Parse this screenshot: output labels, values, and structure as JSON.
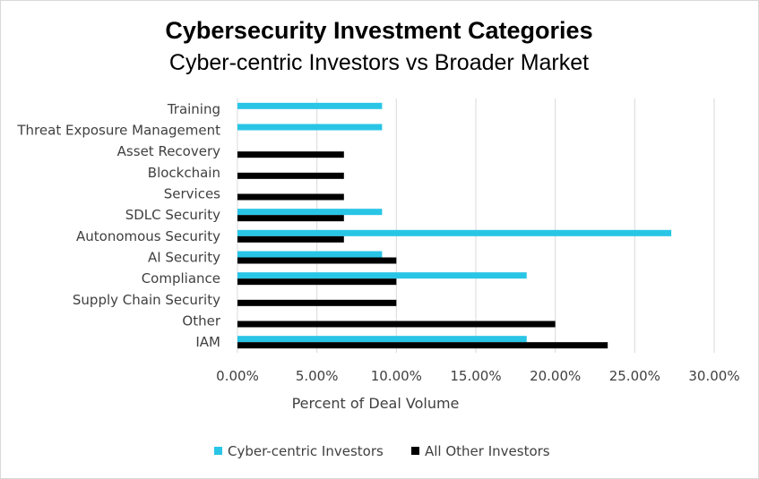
{
  "chart_data": {
    "type": "bar",
    "orientation": "horizontal",
    "title": "Cybersecurity Investment Categories",
    "subtitle": "Cyber-centric Investors vs Broader Market",
    "xlabel": "Percent of Deal Volume",
    "ylabel": "",
    "xlim": [
      0,
      30
    ],
    "x_ticks": [
      0,
      5,
      10,
      15,
      20,
      25,
      30
    ],
    "x_tick_labels": [
      "0.00%",
      "5.00%",
      "10.00%",
      "15.00%",
      "20.00%",
      "25.00%",
      "30.00%"
    ],
    "grid": "vertical",
    "legend_position": "bottom",
    "categories": [
      "IAM",
      "Other",
      "Supply Chain Security",
      "Compliance",
      "AI Security",
      "Autonomous Security",
      "SDLC Security",
      "Services",
      "Blockchain",
      "Asset Recovery",
      "Threat Exposure Management",
      "Training"
    ],
    "series": [
      {
        "name": "Cyber-centric Investors",
        "color": "#29c5e6",
        "values": [
          18.2,
          0,
          0,
          18.2,
          9.1,
          27.3,
          9.1,
          0,
          0,
          0,
          9.1,
          9.1
        ]
      },
      {
        "name": "All Other Investors",
        "color": "#000000",
        "values": [
          23.3,
          20.0,
          10.0,
          10.0,
          10.0,
          6.7,
          6.7,
          6.7,
          6.7,
          6.7,
          0,
          0
        ]
      }
    ]
  }
}
